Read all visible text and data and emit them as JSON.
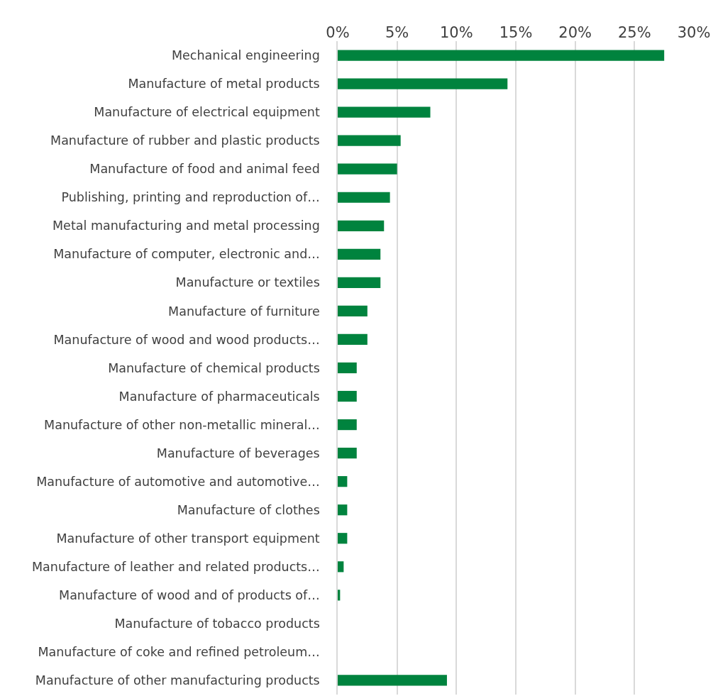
{
  "chart_data": {
    "type": "bar",
    "orientation": "horizontal",
    "categories": [
      "Mechanical engineering",
      "Manufacture of metal products",
      "Manufacture of electrical equipment",
      "Manufacture of rubber and plastic products",
      "Manufacture of food and animal feed",
      "Publishing, printing and reproduction of…",
      "Metal manufacturing and metal processing",
      "Manufacture of computer, electronic and…",
      "Manufacture or textiles",
      "Manufacture of furniture",
      "Manufacture of wood and wood products…",
      "Manufacture of chemical products",
      "Manufacture of pharmaceuticals",
      "Manufacture of other non-metallic mineral…",
      "Manufacture of beverages",
      "Manufacture of automotive and automotive…",
      "Manufacture of clothes",
      "Manufacture of other transport equipment",
      "Manufacture of leather and related products…",
      "Manufacture of wood and of products of…",
      "Manufacture of tobacco products",
      "Manufacture of coke and refined petroleum…",
      "Manufacture of other manufacturing products"
    ],
    "values": [
      27.5,
      14.3,
      7.8,
      5.3,
      5.0,
      4.4,
      3.9,
      3.6,
      3.6,
      2.5,
      2.5,
      1.6,
      1.6,
      1.6,
      1.6,
      0.8,
      0.8,
      0.8,
      0.5,
      0.2,
      0,
      0,
      9.2
    ],
    "color": "#00833e",
    "xlim": [
      0,
      30
    ],
    "xticks": [
      {
        "value": 0,
        "label": "0%"
      },
      {
        "value": 5,
        "label": "5%"
      },
      {
        "value": 10,
        "label": "10%"
      },
      {
        "value": 15,
        "label": "15%"
      },
      {
        "value": 20,
        "label": "20%"
      },
      {
        "value": 25,
        "label": "25%"
      },
      {
        "value": 30,
        "label": "30%"
      }
    ],
    "grid": "x",
    "legend": false
  }
}
